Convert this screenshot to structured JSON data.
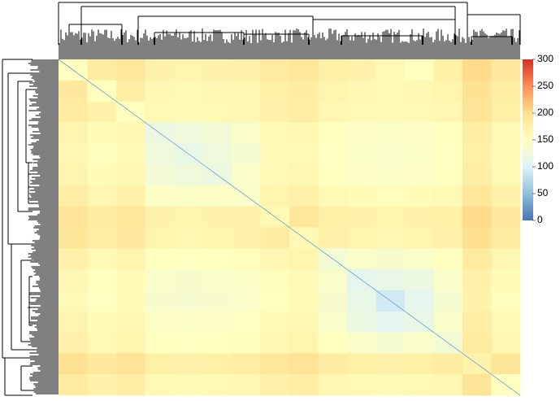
{
  "chart_data": {
    "type": "heatmap",
    "matrix": [
      [
        150,
        180,
        188,
        170,
        168,
        170,
        173,
        183,
        188,
        175,
        170,
        160,
        150,
        175,
        203,
        185
      ],
      [
        185,
        150,
        178,
        163,
        160,
        163,
        165,
        175,
        180,
        168,
        163,
        160,
        163,
        168,
        195,
        178
      ],
      [
        183,
        170,
        150,
        160,
        158,
        160,
        163,
        173,
        178,
        165,
        160,
        158,
        160,
        165,
        193,
        175
      ],
      [
        168,
        155,
        163,
        120,
        125,
        130,
        140,
        158,
        163,
        150,
        145,
        143,
        145,
        150,
        178,
        160
      ],
      [
        165,
        153,
        160,
        125,
        115,
        125,
        135,
        155,
        160,
        148,
        143,
        140,
        143,
        148,
        175,
        158
      ],
      [
        168,
        155,
        163,
        130,
        125,
        120,
        140,
        158,
        163,
        150,
        145,
        143,
        145,
        150,
        178,
        160
      ],
      [
        178,
        165,
        173,
        145,
        143,
        145,
        140,
        168,
        173,
        160,
        155,
        153,
        155,
        160,
        188,
        170
      ],
      [
        193,
        180,
        188,
        170,
        168,
        170,
        173,
        160,
        188,
        175,
        170,
        168,
        170,
        175,
        203,
        185
      ],
      [
        190,
        178,
        185,
        168,
        165,
        168,
        170,
        180,
        160,
        173,
        168,
        165,
        168,
        173,
        200,
        183
      ],
      [
        173,
        160,
        168,
        150,
        148,
        150,
        153,
        163,
        168,
        130,
        140,
        138,
        140,
        150,
        183,
        165
      ],
      [
        163,
        150,
        158,
        140,
        138,
        140,
        143,
        153,
        158,
        140,
        110,
        115,
        120,
        140,
        173,
        155
      ],
      [
        160,
        148,
        155,
        138,
        135,
        138,
        140,
        150,
        155,
        138,
        115,
        90,
        110,
        135,
        170,
        153
      ],
      [
        168,
        155,
        163,
        145,
        143,
        145,
        148,
        158,
        163,
        140,
        120,
        110,
        115,
        140,
        178,
        160
      ],
      [
        173,
        160,
        168,
        150,
        148,
        150,
        153,
        163,
        168,
        150,
        140,
        135,
        140,
        130,
        183,
        165
      ],
      [
        198,
        185,
        193,
        175,
        173,
        175,
        178,
        188,
        193,
        180,
        175,
        173,
        175,
        180,
        170,
        190
      ],
      [
        183,
        170,
        178,
        160,
        158,
        160,
        163,
        173,
        178,
        165,
        160,
        158,
        160,
        165,
        193,
        150
      ]
    ],
    "zlim": [
      0,
      300
    ],
    "zticks": [
      0,
      50,
      100,
      150,
      200,
      250,
      300
    ],
    "colors": [
      "#4575b4",
      "#91bfdb",
      "#e0f3f8",
      "#ffffbf",
      "#fee090",
      "#fc8d59",
      "#d73027"
    ]
  }
}
